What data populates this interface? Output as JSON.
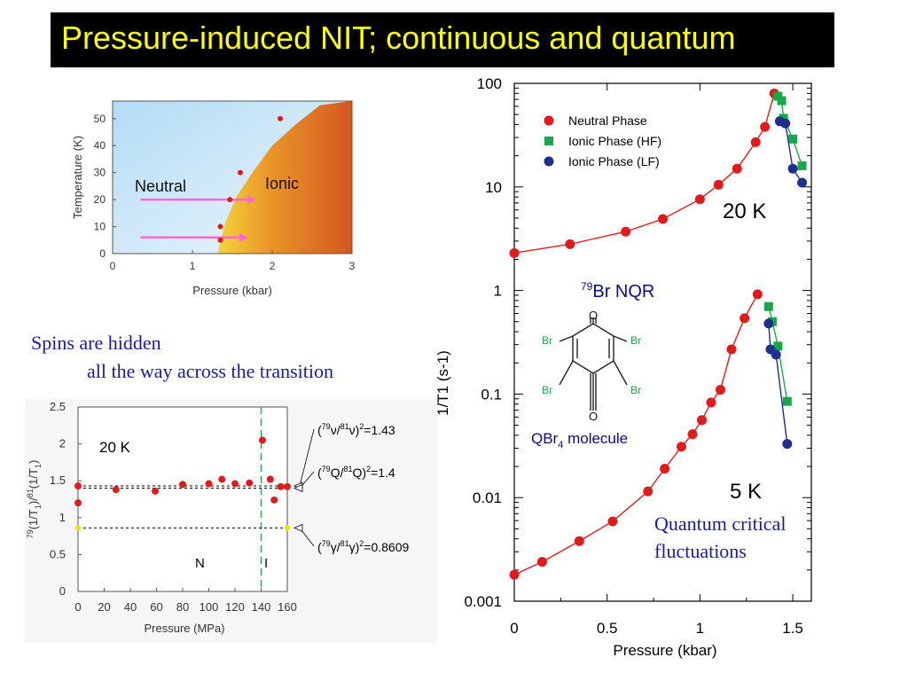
{
  "title": "Pressure-induced NIT; continuous and quantum",
  "notes": {
    "spins_line1": "Spins are hidden",
    "spins_line2": "all the way across the transition",
    "qc_line1": "Quantum critical",
    "qc_line2": "fluctuations"
  },
  "colors": {
    "title_bg": "#000000",
    "title_text": "#ffff00",
    "neutral": "#e01b1b",
    "ionic_hf": "#18a84a",
    "ionic_lf": "#1f2f8f",
    "arrow": "#ff66dd",
    "note_text": "#1a1aa8"
  },
  "chart_data": [
    {
      "type": "scatter",
      "xlabel": "Pressure (kbar)",
      "ylabel": "Temperature (K)",
      "xlim": [
        0,
        3
      ],
      "ylim": [
        0,
        55
      ],
      "xticks": [
        "0",
        "1",
        "2",
        "3"
      ],
      "yticks": [
        "0",
        "10",
        "20",
        "30",
        "40",
        "50"
      ],
      "region_labels": [
        "Neutral",
        "Ionic"
      ],
      "boundary": {
        "x": [
          1.32,
          1.35,
          1.42,
          1.55,
          1.75,
          2.0,
          2.3,
          2.6
        ],
        "y": [
          0,
          5,
          12,
          21,
          30,
          40,
          48,
          55
        ]
      },
      "points": {
        "x": [
          1.35,
          1.35,
          1.47,
          1.6,
          2.1
        ],
        "y": [
          5,
          10,
          20,
          30,
          50
        ]
      },
      "arrows": [
        {
          "x": [
            0.35,
            1.8
          ],
          "y": 20
        },
        {
          "x": [
            0.35,
            1.7
          ],
          "y": 6
        }
      ]
    },
    {
      "type": "scatter",
      "xlabel": "Pressure (kbar)",
      "ylabel": "1/T1 (s-1)",
      "yscale": "log",
      "xlim": [
        0,
        1.6
      ],
      "ylim": [
        0.001,
        100
      ],
      "xticks": [
        "0",
        "0.5",
        "1",
        "1.5"
      ],
      "yticks": [
        "0.001",
        "0.01",
        "0.1",
        "1",
        "10",
        "100"
      ],
      "legend": [
        "Neutral Phase",
        "Ionic Phase (HF)",
        "Ionic Phase (LF)"
      ],
      "annotations": [
        "20 K",
        "5 K",
        "79Br NQR",
        "QBr4 molecule"
      ],
      "molecule_labels": {
        "o": "O",
        "br": "Br"
      },
      "series": [
        {
          "name": "Neutral Phase",
          "temperature": "20 K",
          "x": [
            0,
            0.3,
            0.6,
            0.8,
            1.0,
            1.1,
            1.2,
            1.3,
            1.35,
            1.4
          ],
          "y": [
            2.3,
            2.8,
            3.7,
            4.9,
            7.6,
            10.5,
            15,
            27,
            38,
            80
          ]
        },
        {
          "name": "Ionic Phase (HF)",
          "temperature": "20 K",
          "x": [
            1.42,
            1.44,
            1.45,
            1.5,
            1.55
          ],
          "y": [
            75,
            68,
            46,
            29,
            16
          ]
        },
        {
          "name": "Ionic Phase (LF)",
          "temperature": "20 K",
          "x": [
            1.43,
            1.46,
            1.5,
            1.55
          ],
          "y": [
            43,
            41,
            15,
            11
          ]
        },
        {
          "name": "Neutral Phase",
          "temperature": "5 K",
          "x": [
            0,
            0.15,
            0.35,
            0.53,
            0.72,
            0.81,
            0.9,
            0.96,
            1.01,
            1.06,
            1.11,
            1.17,
            1.24,
            1.31
          ],
          "y": [
            0.0018,
            0.0024,
            0.0038,
            0.0059,
            0.0115,
            0.019,
            0.031,
            0.041,
            0.056,
            0.083,
            0.11,
            0.27,
            0.54,
            0.92
          ]
        },
        {
          "name": "Ionic Phase (HF)",
          "temperature": "5 K",
          "x": [
            1.37,
            1.39,
            1.42,
            1.47
          ],
          "y": [
            0.7,
            0.5,
            0.29,
            0.085
          ]
        },
        {
          "name": "Ionic Phase (LF)",
          "temperature": "5 K",
          "x": [
            1.37,
            1.38,
            1.41,
            1.47
          ],
          "y": [
            0.48,
            0.27,
            0.24,
            0.033
          ]
        }
      ]
    },
    {
      "type": "scatter",
      "xlabel": "Pressure (MPa)",
      "ylabel": "79(1/T1)/81(1/T1)",
      "xlim": [
        0,
        160
      ],
      "ylim": [
        0,
        2.5
      ],
      "xticks": [
        "0",
        "20",
        "40",
        "60",
        "80",
        "100",
        "120",
        "140",
        "160"
      ],
      "yticks": [
        "0",
        "0.5",
        "1",
        "1.5",
        "2",
        "2.5"
      ],
      "annotations": [
        "20 K",
        "N",
        "I"
      ],
      "reference_lines": [
        {
          "label": "(79ν/81ν)²=1.43",
          "value": 1.43
        },
        {
          "label": "(79Q/81Q)²=1.4",
          "value": 1.4
        },
        {
          "label": "(79γ/81γ)²=0.8609",
          "value": 0.8609
        }
      ],
      "transition_pressure": 140,
      "points": {
        "x": [
          0,
          0,
          29,
          59,
          80,
          100,
          110,
          120,
          131,
          141,
          147,
          150,
          155,
          160
        ],
        "y": [
          1.2,
          1.43,
          1.38,
          1.36,
          1.45,
          1.46,
          1.52,
          1.46,
          1.47,
          2.05,
          1.52,
          1.24,
          1.42,
          1.42
        ]
      }
    }
  ]
}
